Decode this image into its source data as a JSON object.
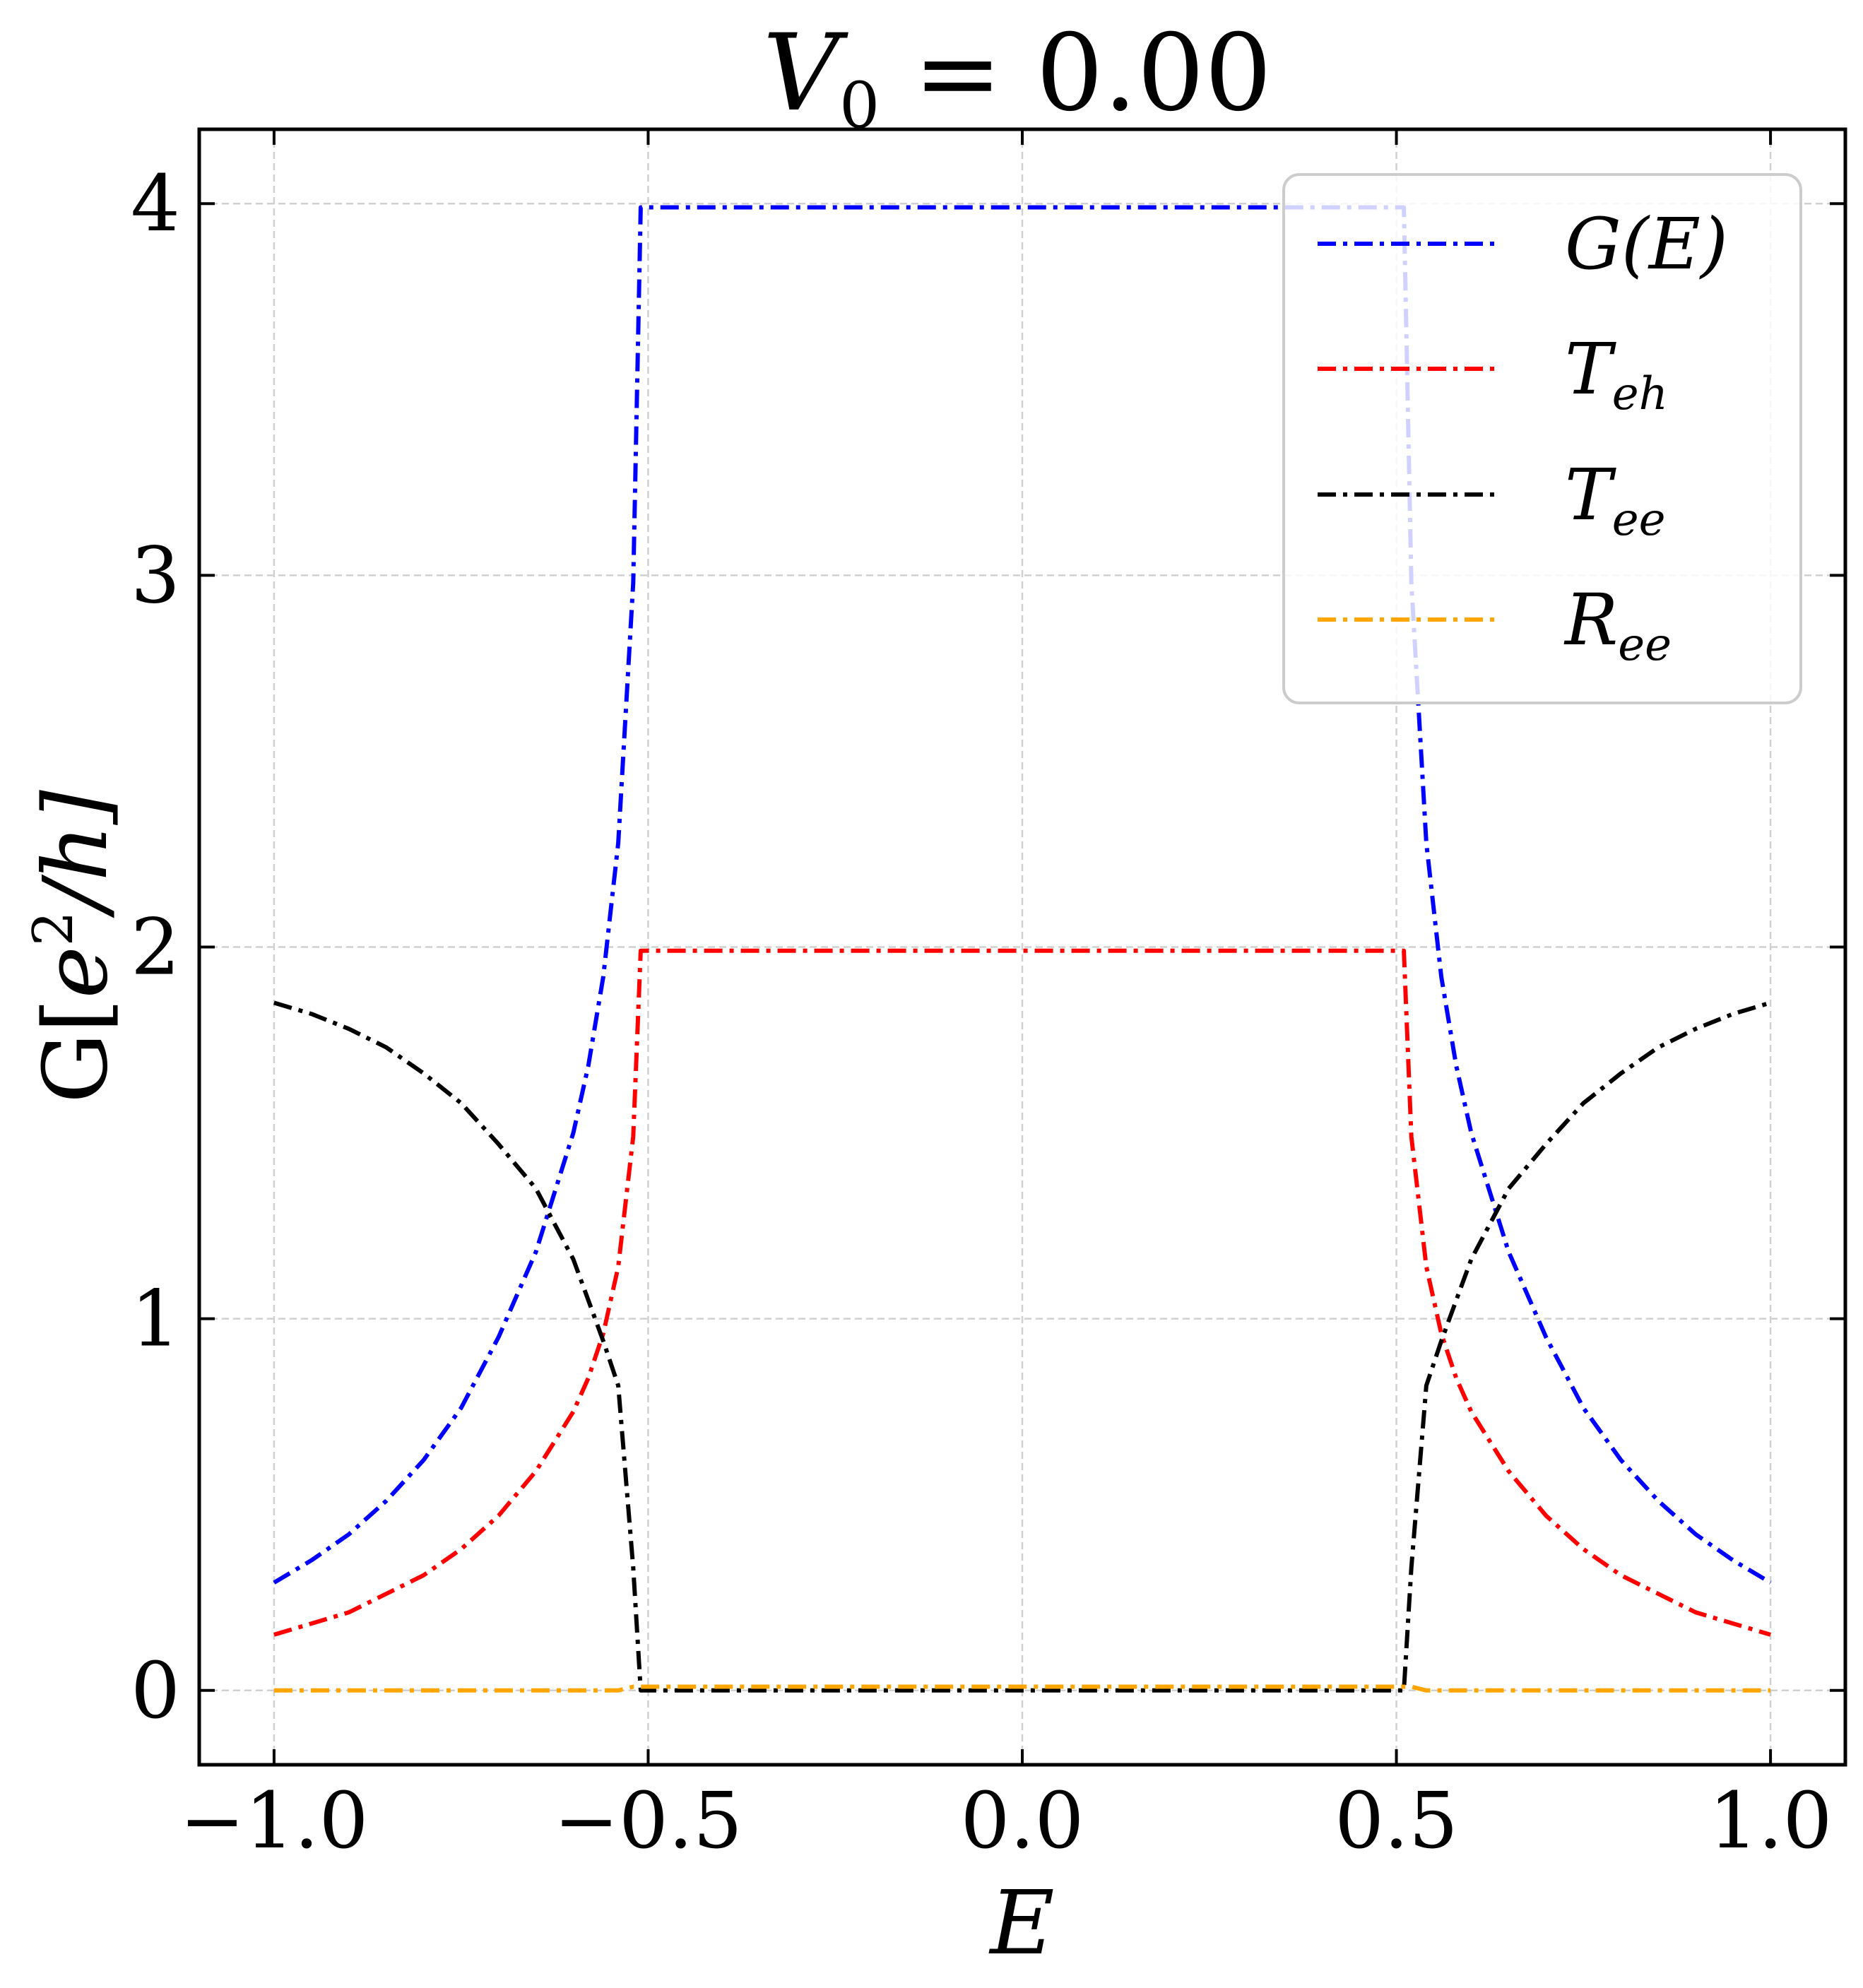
{
  "chart_data": {
    "type": "line",
    "title": {
      "main": "V",
      "sub": "0",
      "rest": " = 0.00"
    },
    "xlabel": "E",
    "ylabel": {
      "prefix": "G[",
      "e": "e",
      "exp": "2",
      "rest": "/h]"
    },
    "xlim": [
      -1.1,
      1.1
    ],
    "ylim": [
      -0.2,
      4.2
    ],
    "xticks": [
      -1.0,
      -0.5,
      0.0,
      0.5,
      1.0
    ],
    "xtick_labels": [
      "−1.0",
      "−0.5",
      "0.0",
      "0.5",
      "1.0"
    ],
    "yticks": [
      0,
      1,
      2,
      3,
      4
    ],
    "ytick_labels": [
      "0",
      "1",
      "2",
      "3",
      "4"
    ],
    "grid": true,
    "legend_position": "top-right",
    "x": [
      -1.0,
      -0.95,
      -0.9,
      -0.85,
      -0.8,
      -0.75,
      -0.7,
      -0.65,
      -0.6,
      -0.58,
      -0.56,
      -0.54,
      -0.52,
      -0.51,
      -0.5,
      -0.25,
      0.0,
      0.25,
      0.5,
      0.51,
      0.52,
      0.54,
      0.56,
      0.58,
      0.6,
      0.65,
      0.7,
      0.75,
      0.8,
      0.85,
      0.9,
      0.95,
      1.0
    ],
    "series": [
      {
        "name": "G(E)",
        "base": "G",
        "sub": "",
        "paren": "(E)",
        "color": "#0000ff",
        "values": [
          0.29,
          0.35,
          0.42,
          0.51,
          0.62,
          0.76,
          0.95,
          1.18,
          1.5,
          1.68,
          1.92,
          2.28,
          2.98,
          3.99,
          3.99,
          3.99,
          3.99,
          3.99,
          3.99,
          3.99,
          2.98,
          2.28,
          1.92,
          1.68,
          1.5,
          1.18,
          0.95,
          0.76,
          0.62,
          0.51,
          0.42,
          0.35,
          0.29
        ]
      },
      {
        "name": "T_eh",
        "base": "T",
        "sub": "eh",
        "paren": "",
        "color": "#ff0000",
        "values": [
          0.15,
          0.18,
          0.21,
          0.26,
          0.31,
          0.38,
          0.47,
          0.59,
          0.75,
          0.84,
          0.96,
          1.14,
          1.49,
          1.99,
          1.99,
          1.99,
          1.99,
          1.99,
          1.99,
          1.99,
          1.49,
          1.14,
          0.96,
          0.84,
          0.75,
          0.59,
          0.47,
          0.38,
          0.31,
          0.26,
          0.21,
          0.18,
          0.15
        ]
      },
      {
        "name": "T_ee",
        "base": "T",
        "sub": "ee",
        "paren": "",
        "color": "#000000",
        "values": [
          1.85,
          1.82,
          1.78,
          1.73,
          1.66,
          1.58,
          1.47,
          1.35,
          1.16,
          1.05,
          0.94,
          0.82,
          0.33,
          0.0,
          0.0,
          0.0,
          0.0,
          0.0,
          0.0,
          0.0,
          0.33,
          0.82,
          0.94,
          1.05,
          1.16,
          1.35,
          1.47,
          1.58,
          1.66,
          1.73,
          1.78,
          1.82,
          1.85
        ]
      },
      {
        "name": "R_ee",
        "base": "R",
        "sub": "ee",
        "paren": "",
        "color": "#ffa500",
        "values": [
          0.0,
          0.0,
          0.0,
          0.0,
          0.0,
          0.0,
          0.0,
          0.0,
          0.0,
          0.0,
          0.0,
          0.0,
          0.01,
          0.01,
          0.01,
          0.01,
          0.01,
          0.01,
          0.01,
          0.01,
          0.01,
          0.0,
          0.0,
          0.0,
          0.0,
          0.0,
          0.0,
          0.0,
          0.0,
          0.0,
          0.0,
          0.0,
          0.0
        ]
      }
    ]
  }
}
